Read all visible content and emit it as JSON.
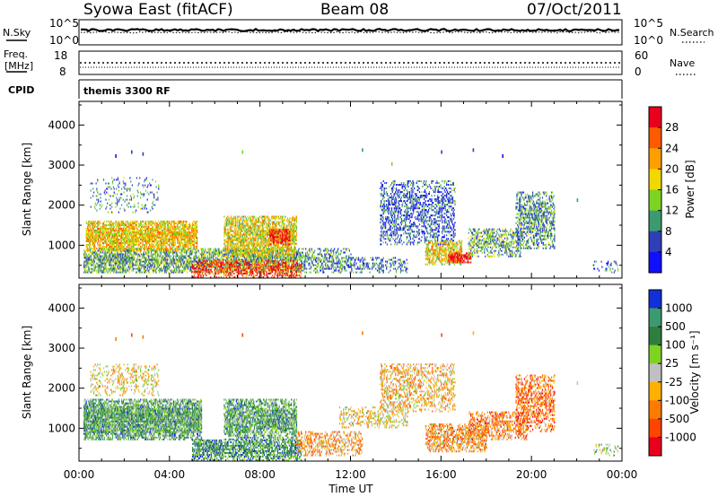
{
  "header": {
    "station": "Syowa East (fitACF)",
    "beam": "Beam 08",
    "date": "07/Oct/2011"
  },
  "noise_panel": {
    "left_label": "N.Sky",
    "right_label": "N.Search",
    "left_ticks": [
      "10^5",
      "10^0"
    ],
    "right_ticks": [
      "10^5",
      "10^0"
    ]
  },
  "freq_panel": {
    "left_label_1": "Freq.",
    "left_label_2": "[MHz]",
    "right_label": "Nave",
    "left_ticks": [
      "18",
      "8"
    ],
    "right_ticks": [
      "60",
      "0"
    ]
  },
  "cpid_panel": {
    "label": "CPID",
    "value": "themis 3300 RF"
  },
  "chart_data": [
    {
      "type": "heatmap",
      "name": "power-panel",
      "ylabel": "Slant Range [km]",
      "ylim": [
        180,
        4590
      ],
      "yticks": [
        "1000",
        "2000",
        "3000",
        "4000"
      ],
      "ytick_values": [
        1000,
        2000,
        3000,
        4000
      ],
      "colorbar_label": "Power [dB]",
      "colorbar_ticks": [
        "28",
        "24",
        "20",
        "16",
        "12",
        "8",
        "4"
      ],
      "colorbar_colors": [
        "#e8001c",
        "#ff5a00",
        "#ff9e00",
        "#f0d800",
        "#7ed321",
        "#3c9a70",
        "#2f3fb8",
        "#1010ff"
      ],
      "regions": [
        {
          "t": [
            0.2,
            9.6
          ],
          "r": [
            300,
            900
          ],
          "d": 0.7,
          "v": 0.35
        },
        {
          "t": [
            0.3,
            5.2
          ],
          "r": [
            850,
            1600
          ],
          "d": 0.8,
          "v": 0.6
        },
        {
          "t": [
            0.5,
            3.5
          ],
          "r": [
            1800,
            2700
          ],
          "d": 0.15,
          "v": 0.3
        },
        {
          "t": [
            5.0,
            9.8
          ],
          "r": [
            180,
            600
          ],
          "d": 0.55,
          "v": 0.85
        },
        {
          "t": [
            6.4,
            9.6
          ],
          "r": [
            700,
            1700
          ],
          "d": 0.75,
          "v": 0.55
        },
        {
          "t": [
            8.4,
            9.3
          ],
          "r": [
            1000,
            1400
          ],
          "d": 0.8,
          "v": 0.9
        },
        {
          "t": [
            9.6,
            12.0
          ],
          "r": [
            300,
            900
          ],
          "d": 0.45,
          "v": 0.3
        },
        {
          "t": [
            12.0,
            14.5
          ],
          "r": [
            300,
            700
          ],
          "d": 0.35,
          "v": 0.25
        },
        {
          "t": [
            13.3,
            16.6
          ],
          "r": [
            1000,
            2600
          ],
          "d": 0.4,
          "v": 0.2
        },
        {
          "t": [
            15.3,
            16.9
          ],
          "r": [
            500,
            1100
          ],
          "d": 0.65,
          "v": 0.55
        },
        {
          "t": [
            16.3,
            17.3
          ],
          "r": [
            550,
            800
          ],
          "d": 0.9,
          "v": 0.95
        },
        {
          "t": [
            17.2,
            19.5
          ],
          "r": [
            700,
            1400
          ],
          "d": 0.5,
          "v": 0.35
        },
        {
          "t": [
            19.3,
            21.0
          ],
          "r": [
            900,
            2300
          ],
          "d": 0.5,
          "v": 0.3
        },
        {
          "t": [
            22.7,
            23.8
          ],
          "r": [
            300,
            600
          ],
          "d": 0.2,
          "v": 0.25
        }
      ],
      "scatter": [
        [
          1.6,
          3200
        ],
        [
          2.3,
          3300
        ],
        [
          2.8,
          3250
        ],
        [
          7.2,
          3300
        ],
        [
          12.5,
          3350
        ],
        [
          16.0,
          3300
        ],
        [
          17.4,
          3350
        ],
        [
          22.0,
          2100
        ],
        [
          13.8,
          3000
        ],
        [
          18.7,
          3200
        ]
      ]
    },
    {
      "type": "heatmap",
      "name": "velocity-panel",
      "ylabel": "Slant Range [km]",
      "ylim": [
        180,
        4590
      ],
      "yticks": [
        "1000",
        "2000",
        "3000",
        "4000"
      ],
      "ytick_values": [
        1000,
        2000,
        3000,
        4000
      ],
      "colorbar_label": "Velocity [m s⁻¹]",
      "colorbar_ticks": [
        "1000",
        "500",
        "100",
        "25",
        "-25",
        "-100",
        "-500",
        "-1000"
      ],
      "colorbar_colors": [
        "#1030d8",
        "#3c9a70",
        "#2f7e3e",
        "#7ed321",
        "#c0c0c0",
        "#ffb000",
        "#ff7a00",
        "#ff4400",
        "#e8001c"
      ],
      "regions": [
        {
          "t": [
            0.2,
            5.4
          ],
          "r": [
            700,
            1700
          ],
          "d": 0.85,
          "v": 0.7
        },
        {
          "t": [
            0.5,
            3.5
          ],
          "r": [
            1800,
            2600
          ],
          "d": 0.25,
          "v": 0.45
        },
        {
          "t": [
            5.0,
            9.8
          ],
          "r": [
            180,
            700
          ],
          "d": 0.7,
          "v": 0.75
        },
        {
          "t": [
            6.4,
            9.6
          ],
          "r": [
            700,
            1700
          ],
          "d": 0.75,
          "v": 0.7
        },
        {
          "t": [
            9.6,
            12.5
          ],
          "r": [
            300,
            900
          ],
          "d": 0.45,
          "v": 0.35
        },
        {
          "t": [
            11.5,
            14.5
          ],
          "r": [
            1000,
            1500
          ],
          "d": 0.35,
          "v": 0.45
        },
        {
          "t": [
            13.3,
            16.6
          ],
          "r": [
            1400,
            2600
          ],
          "d": 0.4,
          "v": 0.4
        },
        {
          "t": [
            15.3,
            18.0
          ],
          "r": [
            400,
            1100
          ],
          "d": 0.6,
          "v": 0.35
        },
        {
          "t": [
            17.2,
            19.8
          ],
          "r": [
            700,
            1400
          ],
          "d": 0.5,
          "v": 0.3
        },
        {
          "t": [
            19.3,
            21.0
          ],
          "r": [
            900,
            2300
          ],
          "d": 0.5,
          "v": 0.25
        },
        {
          "t": [
            22.7,
            23.8
          ],
          "r": [
            300,
            600
          ],
          "d": 0.2,
          "v": 0.6
        }
      ],
      "scatter": [
        [
          1.6,
          3200
        ],
        [
          2.3,
          3300
        ],
        [
          2.8,
          3250
        ],
        [
          7.2,
          3300
        ],
        [
          12.5,
          3350
        ],
        [
          16.0,
          3300
        ],
        [
          17.4,
          3350
        ],
        [
          22.0,
          2100
        ]
      ]
    }
  ],
  "time_axis": {
    "label": "Time UT",
    "range": [
      0,
      24
    ],
    "ticks": [
      "00:00",
      "04:00",
      "08:00",
      "12:00",
      "16:00",
      "20:00",
      "00:00"
    ],
    "tick_values": [
      0,
      4,
      8,
      12,
      16,
      20,
      24
    ]
  }
}
